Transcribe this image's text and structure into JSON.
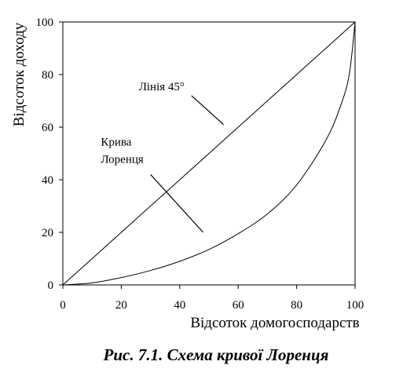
{
  "chart_data": {
    "type": "line",
    "title": "",
    "xlabel": "Відсоток домогосподарств",
    "ylabel": "Відсоток доходу",
    "xlim": [
      0,
      100
    ],
    "ylim": [
      0,
      100
    ],
    "x_ticks": [
      0,
      20,
      40,
      60,
      80,
      100
    ],
    "y_ticks": [
      0,
      20,
      40,
      60,
      80,
      100
    ],
    "grid": false,
    "legend": "none",
    "series": [
      {
        "x": [
          0,
          100
        ],
        "y": [
          0,
          100
        ]
      },
      {
        "x": [
          0,
          10,
          20,
          30,
          40,
          50,
          60,
          70,
          80,
          90,
          95,
          98,
          100
        ],
        "y": [
          0,
          0.8,
          2.8,
          5.5,
          9,
          13.5,
          19.5,
          27,
          38,
          55,
          68,
          80,
          100
        ]
      }
    ],
    "annotations": [
      {
        "lines": [
          "Лінія 45°"
        ],
        "x": 26,
        "y": 74,
        "leader": {
          "from": [
            44,
            72
          ],
          "to": [
            55,
            61
          ]
        }
      },
      {
        "lines": [
          "Крива",
          "Лоренця"
        ],
        "x": 13,
        "y": 53,
        "leader": {
          "from": [
            30,
            42
          ],
          "to": [
            48,
            20
          ]
        }
      }
    ]
  },
  "caption": "Рис. 7.1. Схема кривої Лоренця"
}
